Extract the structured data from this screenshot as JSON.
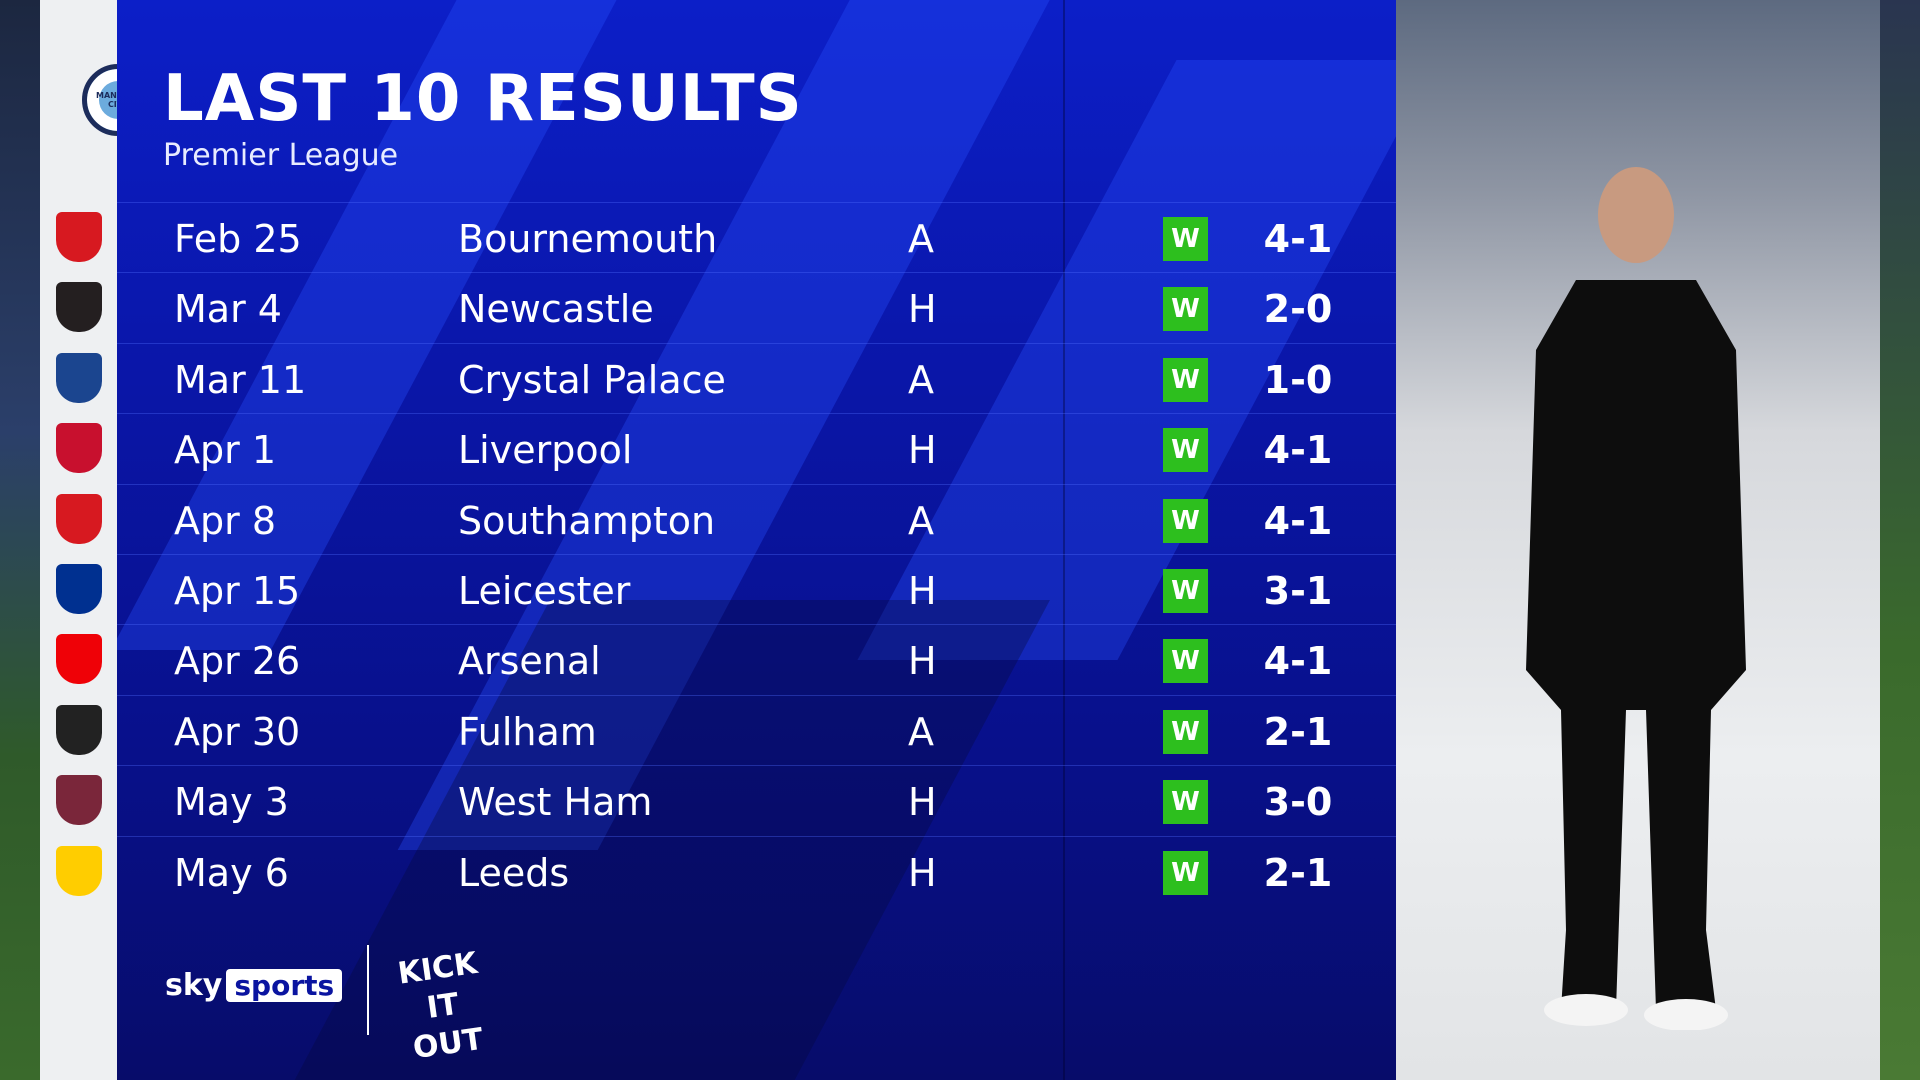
{
  "header": {
    "title": "LAST 10 RESULTS",
    "subtitle": "Premier League",
    "club": "Manchester City"
  },
  "results": [
    {
      "date": "Feb 25",
      "opponent": "Bournemouth",
      "venue": "A",
      "result": "W",
      "score": "4-1",
      "badge_color": "#d71920"
    },
    {
      "date": "Mar 4",
      "opponent": "Newcastle",
      "venue": "H",
      "result": "W",
      "score": "2-0",
      "badge_color": "#241f20"
    },
    {
      "date": "Mar 11",
      "opponent": "Crystal Palace",
      "venue": "A",
      "result": "W",
      "score": "1-0",
      "badge_color": "#1b458f"
    },
    {
      "date": "Apr 1",
      "opponent": "Liverpool",
      "venue": "H",
      "result": "W",
      "score": "4-1",
      "badge_color": "#c8102e"
    },
    {
      "date": "Apr 8",
      "opponent": "Southampton",
      "venue": "A",
      "result": "W",
      "score": "4-1",
      "badge_color": "#d71920"
    },
    {
      "date": "Apr 15",
      "opponent": "Leicester",
      "venue": "H",
      "result": "W",
      "score": "3-1",
      "badge_color": "#003090"
    },
    {
      "date": "Apr 26",
      "opponent": "Arsenal",
      "venue": "H",
      "result": "W",
      "score": "4-1",
      "badge_color": "#ef0107"
    },
    {
      "date": "Apr 30",
      "opponent": "Fulham",
      "venue": "A",
      "result": "W",
      "score": "2-1",
      "badge_color": "#222222"
    },
    {
      "date": "May 3",
      "opponent": "West Ham",
      "venue": "H",
      "result": "W",
      "score": "3-0",
      "badge_color": "#7a263a"
    },
    {
      "date": "May 6",
      "opponent": "Leeds",
      "venue": "H",
      "result": "W",
      "score": "2-1",
      "badge_color": "#ffcd00"
    }
  ],
  "branding": {
    "sky": "sky",
    "sports": "sports",
    "kick_it_out": "KICK IT OUT"
  },
  "colors": {
    "panel": "#0c1fc8",
    "win": "#2dbf1e"
  }
}
